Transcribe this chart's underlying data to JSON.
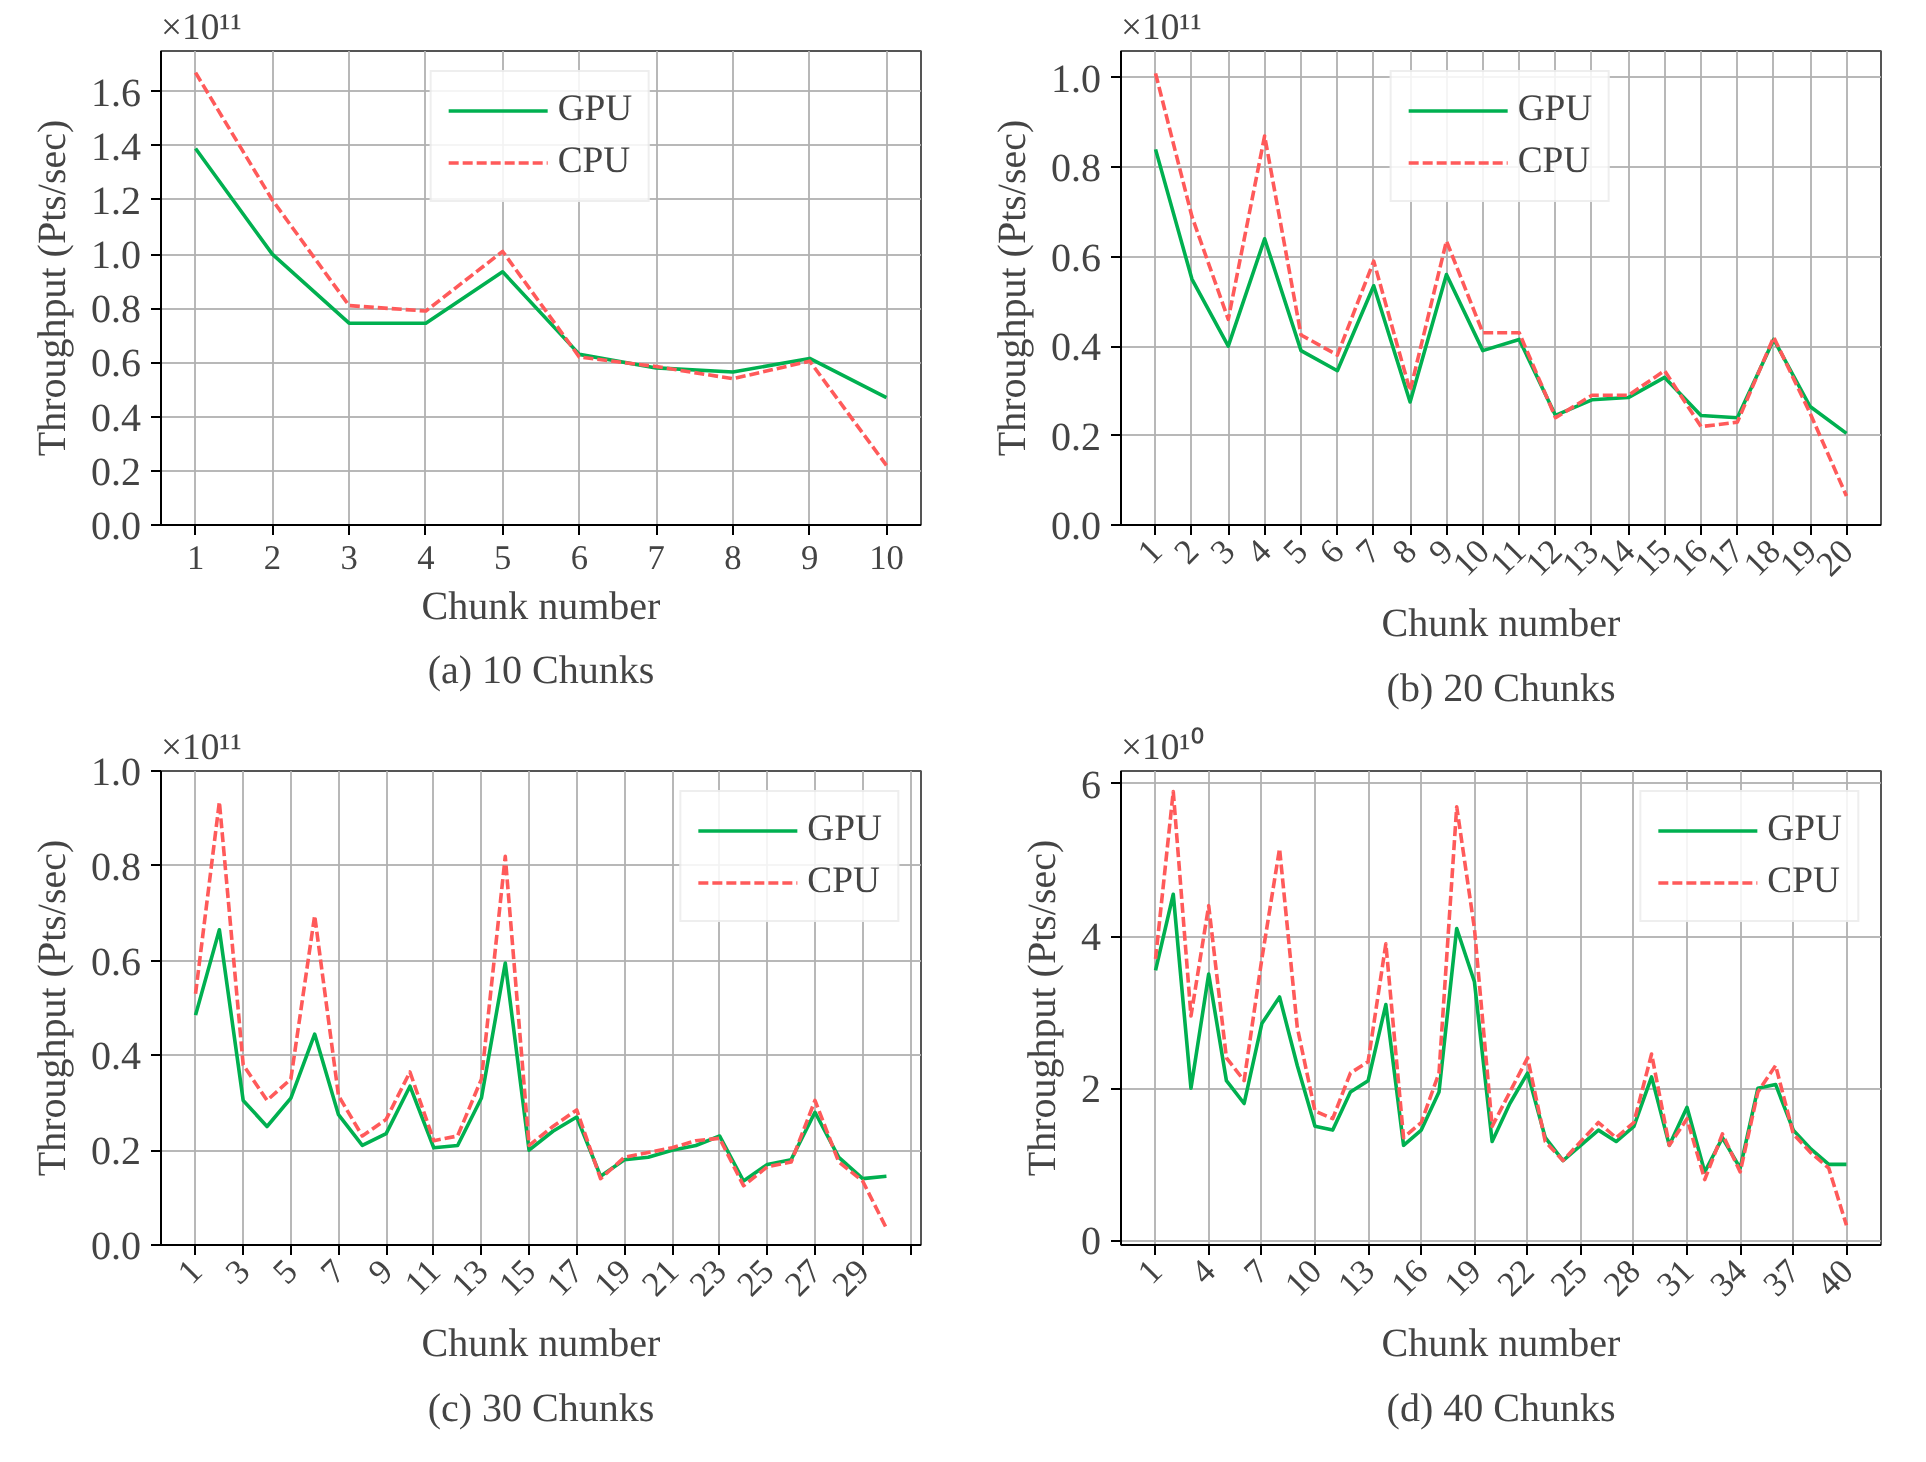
{
  "chart_data": [
    {
      "type": "line",
      "title": "(a) 10 Chunks",
      "xlabel": "Chunk number",
      "ylabel": "Throughput (Pts/sec)",
      "annotations": [
        "×10¹¹"
      ],
      "x": [
        1,
        2,
        3,
        4,
        5,
        6,
        7,
        8,
        9,
        10
      ],
      "xlim": [
        0.55,
        10.45
      ],
      "xticks": [
        1,
        2,
        3,
        4,
        5,
        6,
        7,
        8,
        9,
        10
      ],
      "ylim": [
        0,
        1.75
      ],
      "yticks": [
        {
          "value": 0,
          "label": "0.0"
        },
        {
          "value": 0.2,
          "label": "0.2"
        },
        {
          "value": 0.4,
          "label": "0.4"
        },
        {
          "value": 0.6,
          "label": "0.6"
        },
        {
          "value": 0.8,
          "label": "0.8"
        },
        {
          "value": 1.0,
          "label": "1.0"
        },
        {
          "value": 1.2,
          "label": "1.2"
        },
        {
          "value": 1.4,
          "label": "1.4"
        },
        {
          "value": 1.6,
          "label": "1.6"
        }
      ],
      "grid": true,
      "legend": "top center",
      "series": [
        {
          "name": "GPU",
          "color": "#00b050",
          "line_style": "solid",
          "values": [
            1.39,
            1.0,
            0.745,
            0.745,
            0.935,
            0.63,
            0.58,
            0.565,
            0.615,
            0.47
          ]
        },
        {
          "name": "CPU",
          "color": "#ff5a5a",
          "line_style": "dashed",
          "values": [
            1.67,
            1.2,
            0.81,
            0.79,
            1.01,
            0.62,
            0.585,
            0.54,
            0.605,
            0.22
          ]
        }
      ]
    },
    {
      "type": "line",
      "title": "(b) 20 Chunks",
      "xlabel": "Chunk number",
      "ylabel": "Throughput (Pts/sec)",
      "annotations": [
        "×10¹¹"
      ],
      "x": [
        1,
        2,
        3,
        4,
        5,
        6,
        7,
        8,
        9,
        10,
        11,
        12,
        13,
        14,
        15,
        16,
        17,
        18,
        19,
        20
      ],
      "xlim": [
        0.05,
        20.95
      ],
      "xticks": [
        1,
        2,
        3,
        4,
        5,
        6,
        7,
        8,
        9,
        10,
        11,
        12,
        13,
        14,
        15,
        16,
        17,
        18,
        19,
        20
      ],
      "ylim": [
        0,
        1.06
      ],
      "yticks": [
        {
          "value": 0,
          "label": "0.0"
        },
        {
          "value": 0.2,
          "label": "0.2"
        },
        {
          "value": 0.4,
          "label": "0.4"
        },
        {
          "value": 0.6,
          "label": "0.6"
        },
        {
          "value": 0.8,
          "label": "0.8"
        },
        {
          "value": 1.0,
          "label": "1.0"
        }
      ],
      "grid": true,
      "legend": "top center",
      "series": [
        {
          "name": "GPU",
          "color": "#00b050",
          "line_style": "solid",
          "values": [
            0.84,
            0.55,
            0.4,
            0.64,
            0.39,
            0.345,
            0.535,
            0.275,
            0.56,
            0.39,
            0.415,
            0.245,
            0.28,
            0.285,
            0.33,
            0.245,
            0.24,
            0.415,
            0.265,
            0.205
          ]
        },
        {
          "name": "CPU",
          "color": "#ff5a5a",
          "line_style": "dashed",
          "values": [
            1.01,
            0.69,
            0.46,
            0.87,
            0.425,
            0.38,
            0.59,
            0.3,
            0.635,
            0.43,
            0.43,
            0.24,
            0.29,
            0.29,
            0.345,
            0.22,
            0.23,
            0.42,
            0.25,
            0.065
          ]
        }
      ]
    },
    {
      "type": "line",
      "title": "(c) 30 Chunks",
      "xlabel": "Chunk number",
      "ylabel": "Throughput (Pts/sec)",
      "annotations": [
        "×10¹¹"
      ],
      "x": [
        1,
        2,
        3,
        4,
        5,
        6,
        7,
        8,
        9,
        10,
        11,
        12,
        13,
        14,
        15,
        16,
        17,
        18,
        19,
        20,
        21,
        22,
        23,
        24,
        25,
        26,
        27,
        28,
        29,
        30
      ],
      "xlim": [
        -0.45,
        31.45
      ],
      "xticks": [
        1,
        3,
        5,
        7,
        9,
        11,
        13,
        15,
        17,
        19,
        21,
        23,
        25,
        27,
        29,
        {
          "value": 31,
          "label": null
        }
      ],
      "ylim": [
        0,
        1.0
      ],
      "yticks": [
        {
          "value": 0,
          "label": "0.0"
        },
        {
          "value": 0.2,
          "label": "0.2"
        },
        {
          "value": 0.4,
          "label": "0.4"
        },
        {
          "value": 0.6,
          "label": "0.6"
        },
        {
          "value": 0.8,
          "label": "0.8"
        },
        {
          "value": 1.0,
          "label": "1.0"
        }
      ],
      "grid": true,
      "legend": "top right",
      "series": [
        {
          "name": "GPU",
          "color": "#00b050",
          "line_style": "solid",
          "values": [
            0.485,
            0.665,
            0.305,
            0.25,
            0.31,
            0.445,
            0.275,
            0.21,
            0.235,
            0.335,
            0.205,
            0.21,
            0.31,
            0.595,
            0.2,
            0.24,
            0.27,
            0.145,
            0.18,
            0.185,
            0.2,
            0.21,
            0.23,
            0.135,
            0.17,
            0.18,
            0.28,
            0.185,
            0.14,
            0.145
          ]
        },
        {
          "name": "CPU",
          "color": "#ff5a5a",
          "line_style": "dashed",
          "values": [
            0.53,
            0.935,
            0.38,
            0.305,
            0.35,
            0.695,
            0.315,
            0.23,
            0.265,
            0.365,
            0.22,
            0.23,
            0.35,
            0.82,
            0.21,
            0.25,
            0.285,
            0.14,
            0.185,
            0.195,
            0.205,
            0.22,
            0.225,
            0.125,
            0.165,
            0.175,
            0.305,
            0.175,
            0.135,
            0.035
          ]
        }
      ]
    },
    {
      "type": "line",
      "title": "(d) 40 Chunks",
      "xlabel": "Chunk number",
      "ylabel": "Throughput (Pts/sec)",
      "annotations": [
        "×10¹⁰"
      ],
      "x": [
        1,
        2,
        3,
        4,
        5,
        6,
        7,
        8,
        9,
        10,
        11,
        12,
        13,
        14,
        15,
        16,
        17,
        18,
        19,
        20,
        21,
        22,
        23,
        24,
        25,
        26,
        27,
        28,
        29,
        30,
        31,
        32,
        33,
        34,
        35,
        36,
        37,
        38,
        39,
        40
      ],
      "xlim": [
        -0.95,
        41.95
      ],
      "xticks": [
        1,
        4,
        7,
        10,
        13,
        16,
        19,
        22,
        25,
        28,
        31,
        34,
        37,
        40
      ],
      "ylim": [
        -0.06,
        6.17
      ],
      "yticks": [
        0,
        2,
        4,
        6
      ],
      "grid": true,
      "legend": "top right",
      "series": [
        {
          "name": "GPU",
          "color": "#00b050",
          "line_style": "solid",
          "values": [
            3.55,
            4.55,
            2.0,
            3.5,
            2.1,
            1.8,
            2.85,
            3.2,
            2.3,
            1.5,
            1.45,
            1.95,
            2.1,
            3.1,
            1.25,
            1.45,
            1.95,
            4.1,
            3.4,
            1.3,
            1.8,
            2.2,
            1.35,
            1.05,
            1.25,
            1.45,
            1.3,
            1.5,
            2.15,
            1.25,
            1.75,
            0.9,
            1.35,
            0.95,
            2.0,
            2.05,
            1.45,
            1.2,
            1.0,
            1.0
          ]
        },
        {
          "name": "CPU",
          "color": "#ff5a5a",
          "line_style": "dashed",
          "values": [
            3.7,
            5.9,
            2.95,
            4.4,
            2.4,
            2.1,
            3.7,
            5.15,
            2.8,
            1.7,
            1.6,
            2.2,
            2.35,
            3.9,
            1.35,
            1.55,
            2.2,
            5.7,
            4.1,
            1.5,
            1.95,
            2.4,
            1.3,
            1.05,
            1.3,
            1.55,
            1.35,
            1.55,
            2.45,
            1.25,
            1.6,
            0.8,
            1.4,
            0.9,
            1.95,
            2.3,
            1.4,
            1.15,
            0.95,
            0.2
          ]
        }
      ]
    }
  ]
}
